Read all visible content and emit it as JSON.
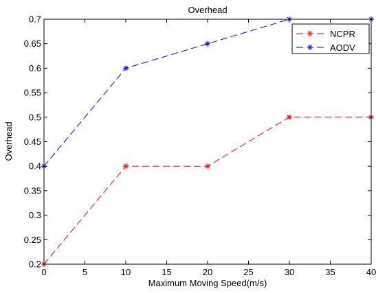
{
  "chart_data": {
    "type": "line",
    "title": "Overhead",
    "xlabel": "Maximum Moving Speed(m/s)",
    "ylabel": "Overhead",
    "xlim": [
      0,
      40
    ],
    "ylim": [
      0.2,
      0.7
    ],
    "xticks": [
      0,
      5,
      10,
      15,
      20,
      25,
      30,
      35,
      40
    ],
    "yticks": [
      0.2,
      0.25,
      0.3,
      0.35,
      0.4,
      0.45,
      0.5,
      0.55,
      0.6,
      0.65,
      0.7
    ],
    "grid": false,
    "legend_position": "top-right",
    "series": [
      {
        "name": "NCPR",
        "color": "#ff0000",
        "line_style": "dashed",
        "marker": "asterisk",
        "x": [
          0,
          10,
          20,
          30,
          40
        ],
        "y": [
          0.2,
          0.4,
          0.4,
          0.5,
          0.5
        ]
      },
      {
        "name": "AODV",
        "color": "#0000ff",
        "line_style": "dashed",
        "marker": "asterisk",
        "x": [
          0,
          10,
          20,
          30,
          40
        ],
        "y": [
          0.4,
          0.6,
          0.65,
          0.7,
          0.7
        ]
      }
    ]
  }
}
